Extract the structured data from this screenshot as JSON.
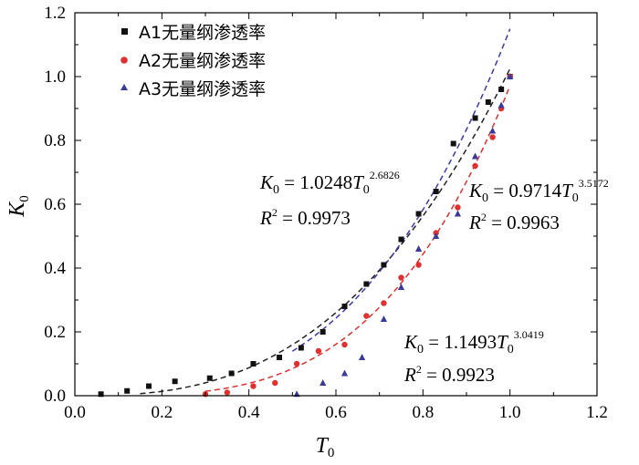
{
  "chart_data": {
    "type": "scatter",
    "xlabel": "T",
    "xlabel_sub": "0",
    "ylabel": "K",
    "ylabel_sub": "0",
    "xlim": [
      0.0,
      1.2
    ],
    "ylim": [
      0.0,
      1.2
    ],
    "xticks": [
      "0.0",
      "0.2",
      "0.4",
      "0.6",
      "0.8",
      "1.0",
      "1.2"
    ],
    "yticks": [
      "0.0",
      "0.2",
      "0.4",
      "0.6",
      "0.8",
      "1.0",
      "1.2"
    ],
    "grid": false,
    "legend_position": "top-left",
    "series": [
      {
        "name": "A1无量纲渗透率",
        "marker": "square",
        "color": "#111111",
        "fit_color": "#222222",
        "fit": {
          "a": 1.0248,
          "b": 2.6826,
          "x_start": 0.15,
          "x_end": 1.0
        },
        "x": [
          0.06,
          0.12,
          0.17,
          0.23,
          0.31,
          0.36,
          0.41,
          0.47,
          0.52,
          0.57,
          0.62,
          0.67,
          0.71,
          0.75,
          0.79,
          0.83,
          0.87,
          0.92,
          0.95,
          0.98,
          1.0
        ],
        "y": [
          0.005,
          0.015,
          0.03,
          0.045,
          0.055,
          0.07,
          0.1,
          0.12,
          0.15,
          0.2,
          0.28,
          0.35,
          0.41,
          0.49,
          0.57,
          0.64,
          0.79,
          0.87,
          0.92,
          0.96,
          1.0
        ]
      },
      {
        "name": "A2无量纲渗透率",
        "marker": "circle",
        "color": "#e03030",
        "fit_color": "#e03030",
        "fit": {
          "a": 0.9714,
          "b": 3.5172,
          "x_start": 0.3,
          "x_end": 1.0
        },
        "x": [
          0.3,
          0.35,
          0.41,
          0.46,
          0.51,
          0.56,
          0.62,
          0.67,
          0.71,
          0.75,
          0.79,
          0.83,
          0.88,
          0.92,
          0.96,
          0.98,
          1.0
        ],
        "y": [
          0.005,
          0.01,
          0.03,
          0.04,
          0.1,
          0.14,
          0.16,
          0.25,
          0.29,
          0.37,
          0.41,
          0.51,
          0.59,
          0.72,
          0.81,
          0.9,
          1.0
        ]
      },
      {
        "name": "A3无量纲渗透率",
        "marker": "triangle",
        "color": "#3a3a9a",
        "fit_color": "#3a3aa8",
        "fit": {
          "a": 1.1493,
          "b": 3.0419,
          "x_start": 0.5,
          "x_end": 1.0
        },
        "x": [
          0.51,
          0.57,
          0.62,
          0.66,
          0.71,
          0.75,
          0.79,
          0.83,
          0.88,
          0.92,
          0.96,
          0.98,
          1.0
        ],
        "y": [
          0.005,
          0.04,
          0.07,
          0.12,
          0.24,
          0.34,
          0.46,
          0.5,
          0.57,
          0.75,
          0.83,
          0.91,
          1.0
        ]
      }
    ],
    "annotations": [
      {
        "K_letter": "K",
        "K_sub": "0",
        "equals": " = 1.0248",
        "T_letter": "T",
        "T_sub": "0",
        "exponent": "2.6826",
        "R_letter": "R",
        "R_sup": "2",
        "r2": " = 0.9973"
      },
      {
        "K_letter": "K",
        "K_sub": "0",
        "equals": " = 0.9714",
        "T_letter": "T",
        "T_sub": "0",
        "exponent": "3.5172",
        "R_letter": "R",
        "R_sup": "2",
        "r2": " = 0.9963"
      },
      {
        "K_letter": "K",
        "K_sub": "0",
        "equals": " = 1.1493",
        "T_letter": "T",
        "T_sub": "0",
        "exponent": "3.0419",
        "R_letter": "R",
        "R_sup": "2",
        "r2": " = 0.9923"
      }
    ]
  }
}
